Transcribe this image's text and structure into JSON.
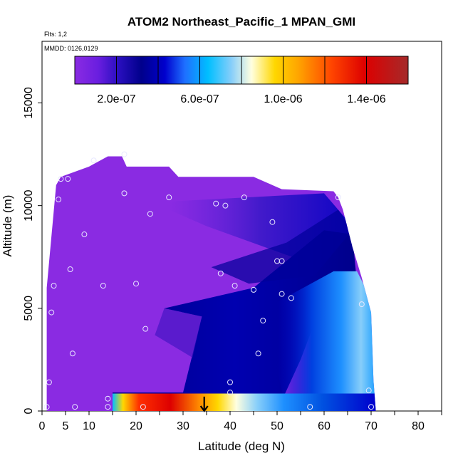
{
  "chart_data": {
    "type": "heatmap",
    "title": "ATOM2 Northeast_Pacific_1 MPAN_GMI",
    "subtitle_flts": "Flts: 1,2",
    "subtitle_mmdd": "MMDD: 0126,0129",
    "xlabel": "Latitude (deg N)",
    "ylabel": "Altitude (m)",
    "xlim": [
      0,
      85
    ],
    "ylim": [
      0,
      18000
    ],
    "x_ticks": [
      0,
      5,
      10,
      20,
      30,
      40,
      50,
      60,
      70,
      80
    ],
    "x_tick_labels": [
      "0",
      "5",
      "10",
      "20",
      "30",
      "40",
      "50",
      "60",
      "70",
      "80"
    ],
    "y_ticks": [
      0,
      5000,
      10000,
      15000
    ],
    "y_tick_labels": [
      "0",
      "5000",
      "10000",
      "15000"
    ],
    "colorbar": {
      "range": [
        0,
        1.6e-06
      ],
      "ticks": [
        2e-07,
        6e-07,
        1e-06,
        1.4e-06
      ],
      "tick_labels": [
        "2.0e-07",
        "6.0e-07",
        "1.0e-06",
        "1.4e-06"
      ],
      "colors": [
        "#8a2be2",
        "#6a1ee0",
        "#2a0fbf",
        "#00008b",
        "#0000cd",
        "#1e6fff",
        "#00bfff",
        "#87cefa",
        "#ffffe0",
        "#ffd700",
        "#ffa500",
        "#ff4500",
        "#dd0000",
        "#b22222",
        "#a52a2a"
      ]
    },
    "profile_top_altitude": [
      [
        1,
        6000
      ],
      [
        2,
        8500
      ],
      [
        3,
        11000
      ],
      [
        4,
        11400
      ],
      [
        10,
        11900
      ],
      [
        14,
        12400
      ],
      [
        17,
        12400
      ],
      [
        18,
        11900
      ],
      [
        27,
        11900
      ],
      [
        29,
        11400
      ],
      [
        45,
        11400
      ],
      [
        51,
        10800
      ],
      [
        62,
        10700
      ],
      [
        63,
        10400
      ],
      [
        64,
        9800
      ],
      [
        66,
        8000
      ],
      [
        68,
        6500
      ],
      [
        70,
        4800
      ],
      [
        70.5,
        1500
      ],
      [
        71,
        0
      ]
    ],
    "sample_points": [
      [
        1,
        200
      ],
      [
        1.5,
        1400
      ],
      [
        2,
        4800
      ],
      [
        2.5,
        6100
      ],
      [
        3.5,
        10300
      ],
      [
        4,
        11300
      ],
      [
        5.5,
        11300
      ],
      [
        6,
        6900
      ],
      [
        6.5,
        2800
      ],
      [
        7,
        200
      ],
      [
        9,
        8600
      ],
      [
        11,
        12200
      ],
      [
        13,
        6100
      ],
      [
        14,
        600
      ],
      [
        14,
        200
      ],
      [
        17.5,
        12500
      ],
      [
        17.5,
        10600
      ],
      [
        20,
        6200
      ],
      [
        21.5,
        200
      ],
      [
        22,
        4000
      ],
      [
        23,
        9600
      ],
      [
        27,
        10400
      ],
      [
        37,
        10100
      ],
      [
        38,
        6700
      ],
      [
        39,
        10000
      ],
      [
        40,
        900
      ],
      [
        40,
        1400
      ],
      [
        41,
        6100
      ],
      [
        43,
        10400
      ],
      [
        45,
        5900
      ],
      [
        46,
        2800
      ],
      [
        47,
        4400
      ],
      [
        49,
        9200
      ],
      [
        50,
        7300
      ],
      [
        51,
        7300
      ],
      [
        51,
        5700
      ],
      [
        53,
        5500
      ],
      [
        57,
        200
      ],
      [
        63,
        10400
      ],
      [
        68,
        5200
      ],
      [
        69.5,
        1000
      ],
      [
        70,
        200
      ]
    ],
    "arrow": {
      "lat": 34.5,
      "alt_from": 700,
      "alt_to": 0
    },
    "grid": false
  }
}
